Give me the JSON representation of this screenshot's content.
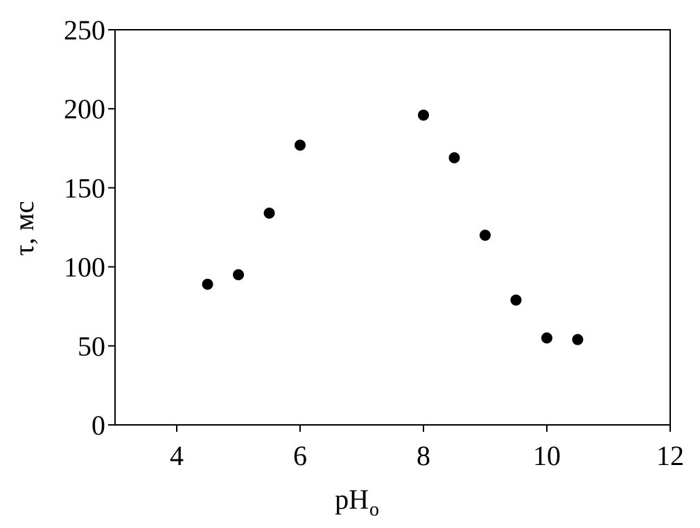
{
  "chart_data": {
    "type": "scatter",
    "x_label": "pH",
    "x_label_subscript": "o",
    "y_label": "τ, мс",
    "x": [
      4.5,
      5,
      5.5,
      6,
      8,
      8.5,
      9,
      9.5,
      10,
      10.5
    ],
    "values": [
      89,
      95,
      134,
      177,
      196,
      169,
      120,
      79,
      55,
      54
    ],
    "color": "#000000",
    "xlim": [
      3,
      12
    ],
    "xticks": [
      4,
      6,
      8,
      10,
      12
    ],
    "ylim": [
      0,
      250
    ],
    "yticks": [
      0,
      50,
      100,
      150,
      200,
      250
    ],
    "grid": false
  }
}
